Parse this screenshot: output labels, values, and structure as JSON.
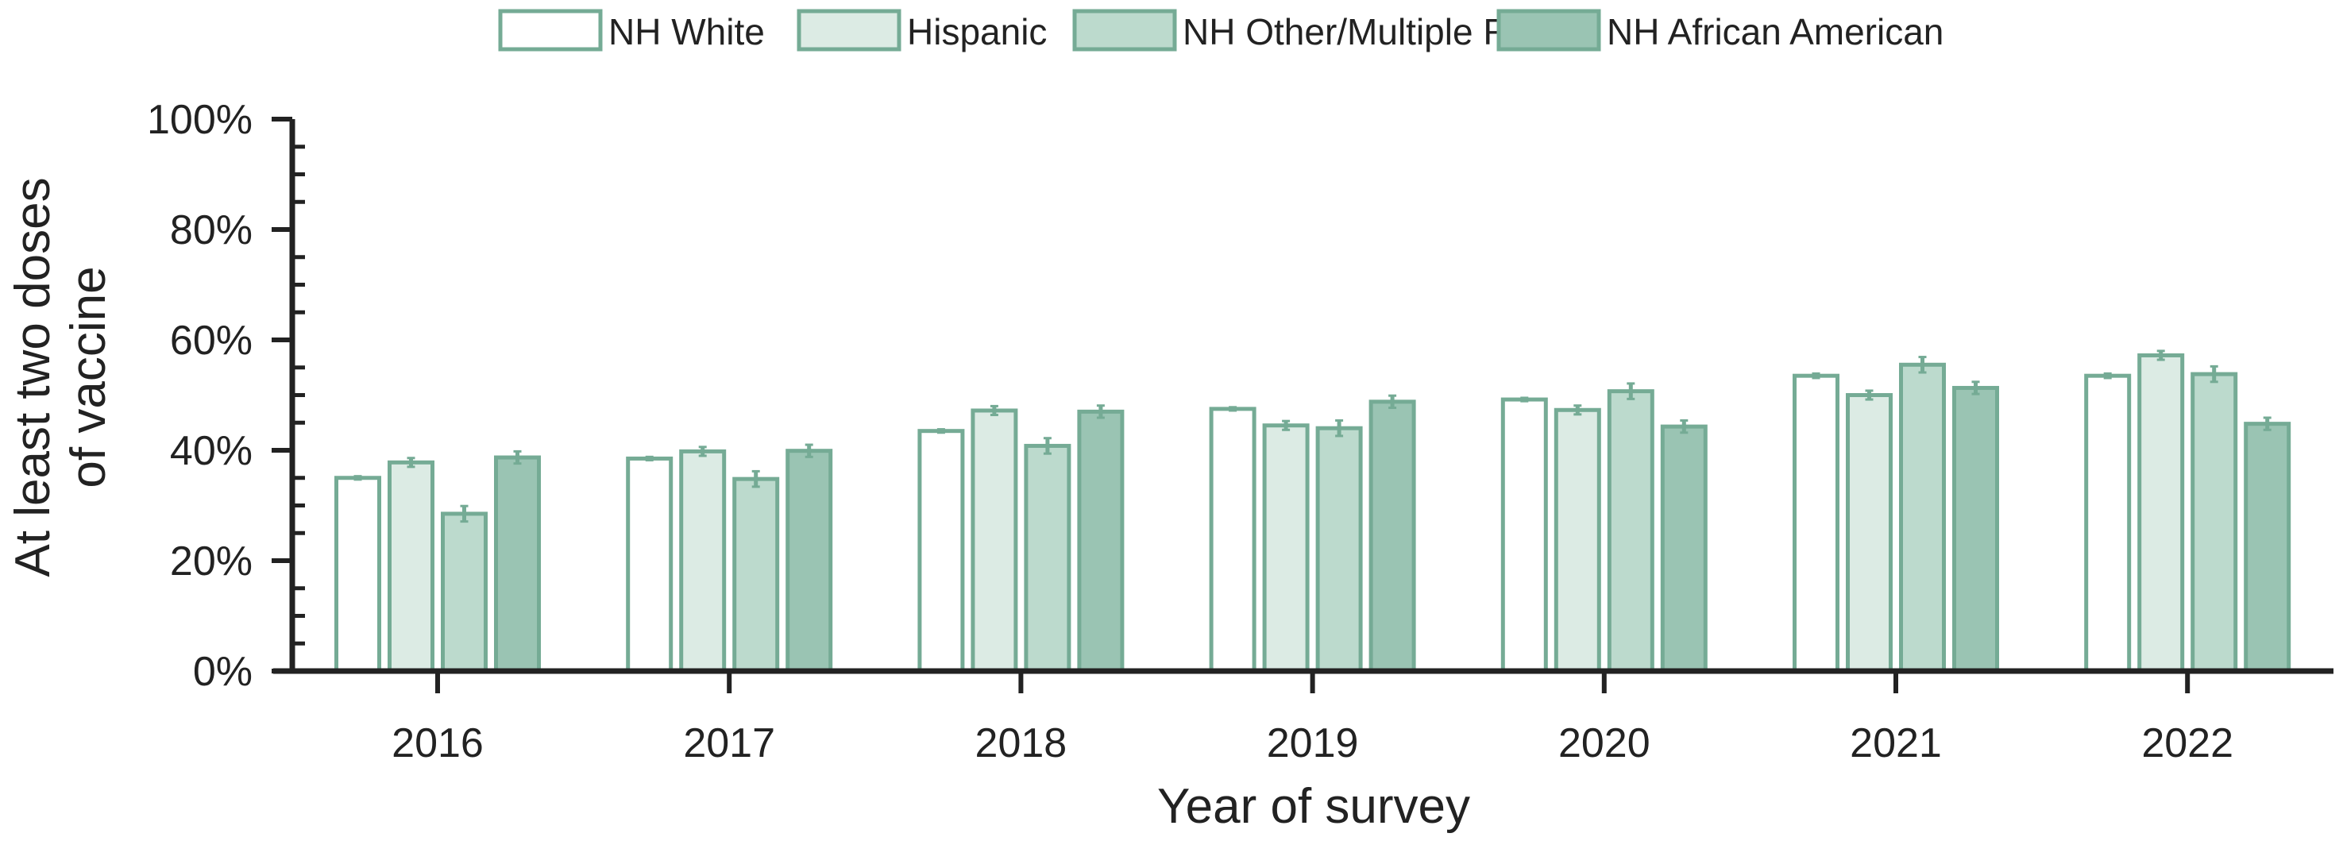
{
  "chart_data": {
    "type": "bar",
    "title": "",
    "xlabel": "Year of survey",
    "ylabel": [
      "At least two doses",
      "of vaccine"
    ],
    "ylim": [
      0,
      100
    ],
    "y_unit": "%",
    "y_ticks": [
      "0%",
      "20%",
      "40%",
      "60%",
      "80%",
      "100%"
    ],
    "grid": false,
    "legend_position": "top",
    "error_bars": true,
    "categories": [
      "2016",
      "2017",
      "2018",
      "2019",
      "2020",
      "2021",
      "2022"
    ],
    "series": [
      {
        "name": "NH White",
        "color": "#ffffff",
        "values": [
          35.0,
          38.5,
          43.5,
          47.5,
          49.2,
          53.5,
          53.5
        ],
        "err": [
          0.3,
          0.3,
          0.3,
          0.3,
          0.3,
          0.4,
          0.4
        ]
      },
      {
        "name": "Hispanic",
        "color": "#dcebe4",
        "values": [
          37.8,
          39.8,
          47.2,
          44.5,
          47.3,
          50.0,
          57.2
        ],
        "err": [
          0.8,
          0.8,
          0.8,
          0.8,
          0.8,
          0.8,
          0.8
        ]
      },
      {
        "name": "NH Other/Multiple Races",
        "color": "#bcdacd",
        "values": [
          28.5,
          34.8,
          40.8,
          44.0,
          50.7,
          55.5,
          53.8
        ],
        "err": [
          1.4,
          1.4,
          1.4,
          1.4,
          1.4,
          1.4,
          1.4
        ]
      },
      {
        "name": "NH African American",
        "color": "#9ac4b3",
        "values": [
          38.7,
          39.9,
          47.0,
          48.8,
          44.3,
          51.3,
          44.8
        ],
        "err": [
          1.1,
          1.1,
          1.1,
          1.1,
          1.1,
          1.1,
          1.1
        ]
      }
    ],
    "edge_color": "#75ab95"
  }
}
